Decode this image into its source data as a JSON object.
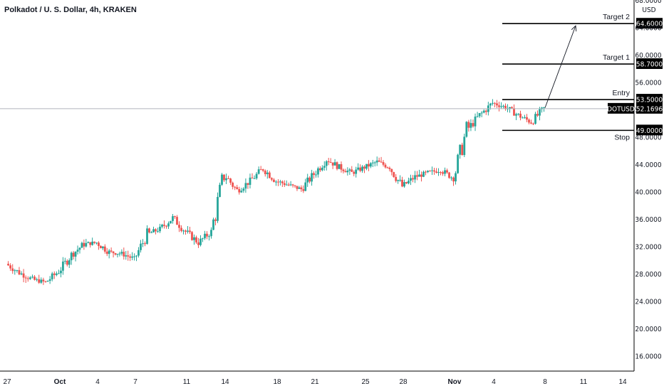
{
  "header": {
    "title": "Polkadot / U. S. Dollar, 4h, KRAKEN",
    "currency": "USD"
  },
  "colors": {
    "up": "#26a69a",
    "down": "#ef5350",
    "line": "#000000",
    "crosshair": "#b2b5be",
    "tag_bg": "#000000"
  },
  "chart_data": {
    "type": "candlestick",
    "ylim": [
      12,
      70
    ],
    "y_ticks": [
      "16.0000",
      "20.0000",
      "24.0000",
      "28.0000",
      "32.0000",
      "36.0000",
      "40.0000",
      "44.0000",
      "48.0000",
      "52.0000",
      "56.0000",
      "60.0000",
      "64.0000",
      "68.0000"
    ],
    "x_ticks": [
      "27",
      "Oct",
      "4",
      "7",
      "11",
      "14",
      "18",
      "21",
      "25",
      "28",
      "Nov",
      "4",
      "8",
      "11",
      "14"
    ],
    "x_tick_bold": [
      "Oct",
      "Nov"
    ],
    "price_path": [
      [
        "27",
        29.5
      ],
      [
        "28",
        28.2
      ],
      [
        "29",
        27.2
      ],
      [
        "30",
        26.8
      ],
      [
        "Oct",
        28.4
      ],
      [
        "2",
        30.8
      ],
      [
        "3",
        32.4
      ],
      [
        "4",
        32.6
      ],
      [
        "5",
        31.2
      ],
      [
        "6",
        31.0
      ],
      [
        "7",
        30.2
      ],
      [
        "8",
        33.8
      ],
      [
        "9",
        34.6
      ],
      [
        "10",
        36.2
      ],
      [
        "11",
        34.2
      ],
      [
        "12",
        32.6
      ],
      [
        "13",
        34.2
      ],
      [
        "14",
        42.6
      ],
      [
        "15",
        40.2
      ],
      [
        "16",
        41.6
      ],
      [
        "17",
        43.4
      ],
      [
        "18",
        41.6
      ],
      [
        "19",
        41.0
      ],
      [
        "20",
        40.4
      ],
      [
        "21",
        42.6
      ],
      [
        "22",
        44.8
      ],
      [
        "23",
        43.6
      ],
      [
        "24",
        42.8
      ],
      [
        "25",
        43.6
      ],
      [
        "26",
        44.4
      ],
      [
        "27",
        43.6
      ],
      [
        "28",
        40.8
      ],
      [
        "29",
        42.2
      ],
      [
        "30",
        42.8
      ],
      [
        "31",
        43.2
      ],
      [
        "Nov",
        42.0
      ],
      [
        "2",
        49.0
      ],
      [
        "3",
        51.2
      ],
      [
        "4",
        53.0
      ],
      [
        "5",
        52.4
      ],
      [
        "6",
        51.2
      ],
      [
        "7",
        50.2
      ],
      [
        "8",
        52.17
      ]
    ],
    "levels": [
      {
        "name": "Target 2",
        "value": 64.6,
        "label": "64.6000"
      },
      {
        "name": "Target 1",
        "value": 58.7,
        "label": "58.7000"
      },
      {
        "name": "Entry",
        "value": 53.5,
        "label": "53.5000"
      },
      {
        "name": "Stop",
        "value": 49.0,
        "label": "49.0000"
      }
    ],
    "current": {
      "symbol": "DOTUSD",
      "value": 52.1696,
      "label": "52.1696"
    },
    "projection": {
      "from_date": "8",
      "from_value": 52.3,
      "to_date": "10",
      "to_value": 64.6
    }
  }
}
